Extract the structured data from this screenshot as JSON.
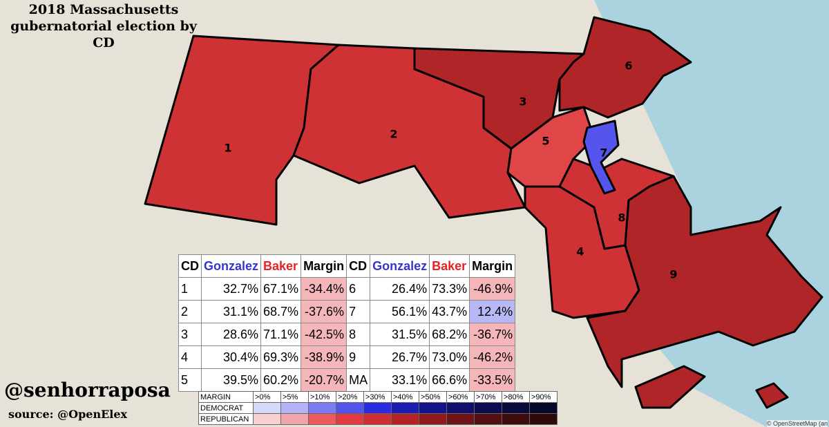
{
  "header": {
    "title": "2018 Massachusetts gubernatorial election by CD"
  },
  "districts": [
    {
      "label": "1"
    },
    {
      "label": "2"
    },
    {
      "label": "3"
    },
    {
      "label": "4"
    },
    {
      "label": "5"
    },
    {
      "label": "6"
    },
    {
      "label": "7"
    },
    {
      "label": "8"
    },
    {
      "label": "9"
    }
  ],
  "table": {
    "columns": [
      "CD",
      "Gonzalez",
      "Baker",
      "Margin",
      "CD",
      "Gonzalez",
      "Baker",
      "Margin"
    ],
    "rows": [
      [
        "1",
        "32.7%",
        "67.1%",
        "-34.4%",
        "6",
        "26.4%",
        "73.3%",
        "-46.9%"
      ],
      [
        "2",
        "31.1%",
        "68.7%",
        "-37.6%",
        "7",
        "56.1%",
        "43.7%",
        "12.4%"
      ],
      [
        "3",
        "28.6%",
        "71.1%",
        "-42.5%",
        "8",
        "31.5%",
        "68.2%",
        "-36.7%"
      ],
      [
        "4",
        "30.4%",
        "69.3%",
        "-38.9%",
        "9",
        "26.7%",
        "73.0%",
        "-46.2%"
      ],
      [
        "5",
        "39.5%",
        "60.2%",
        "-20.7%",
        "MA",
        "33.1%",
        "66.6%",
        "-33.5%"
      ]
    ]
  },
  "legend": {
    "header": [
      "MARGIN",
      ">0%",
      ">5%",
      ">10%",
      ">20%",
      ">30%",
      ">40%",
      ">50%",
      ">60%",
      ">70%",
      ">80%",
      ">90%"
    ],
    "rows": [
      {
        "label": "DEMOCRAT",
        "colors": [
          "#d8d8fb",
          "#b3b3f6",
          "#7c7cf0",
          "#5353ee",
          "#2b2be0",
          "#1c1cb0",
          "#14148a",
          "#10106a",
          "#0c0c50",
          "#0a0a3c",
          "#08082c"
        ]
      },
      {
        "label": "REPUBLICAN",
        "colors": [
          "#f8d0d2",
          "#f3a6a9",
          "#ec5a5e",
          "#e23b3f",
          "#cf2f33",
          "#b42226",
          "#8e1a1d",
          "#6e1416",
          "#531012",
          "#3f0c0e",
          "#2e0a0b"
        ]
      }
    ]
  },
  "credit": {
    "handle": "@senhorraposa",
    "source": "source: @OpenElex",
    "attribution": "© OpenStreetMap (an"
  }
}
